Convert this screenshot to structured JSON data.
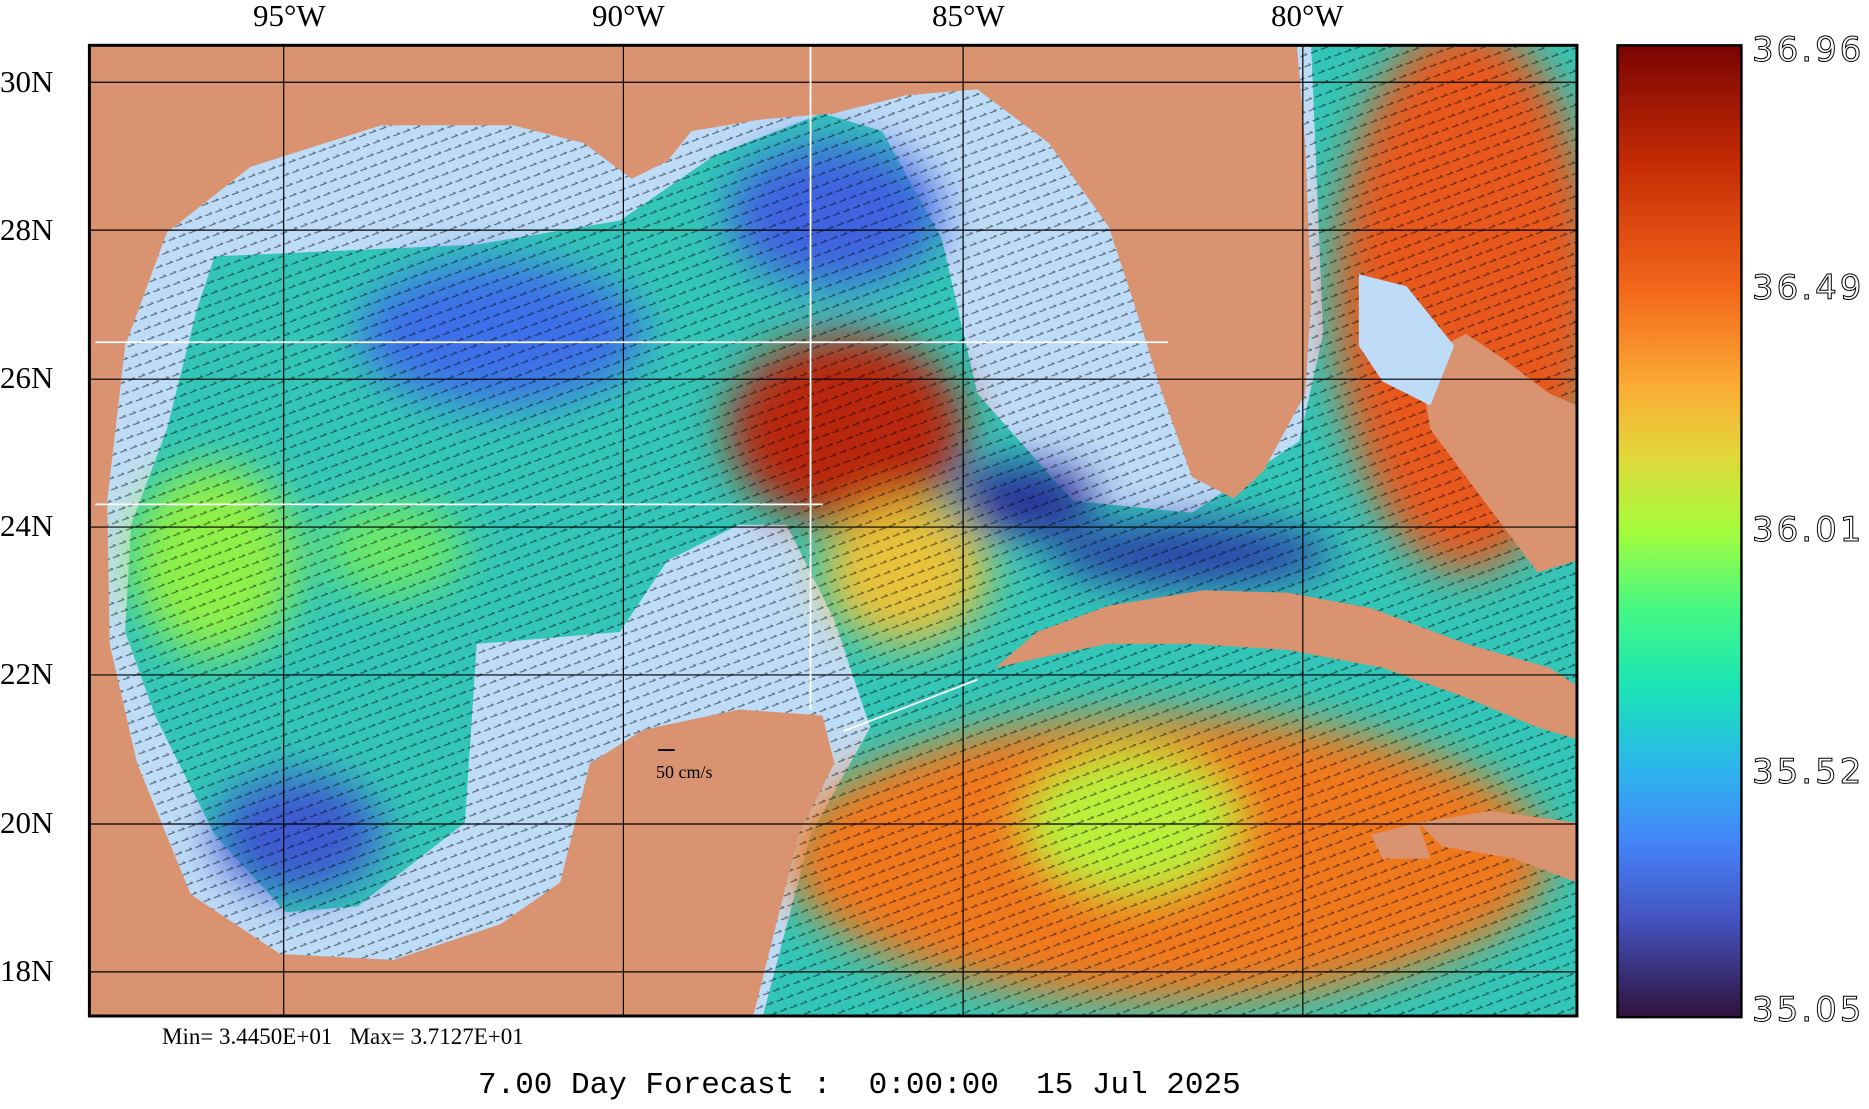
{
  "chart_data": {
    "type": "heatmap",
    "title": "7.00 Day Forecast :  0:00:00  15 Jul 2025",
    "variable": "sea surface salinity with surface current vectors",
    "x_ticks": [
      "95°W",
      "90°W",
      "85°W",
      "80°W"
    ],
    "x_tick_values": [
      -95,
      -90,
      -85,
      -80
    ],
    "y_ticks": [
      "30N",
      "28N",
      "26N",
      "24N",
      "22N",
      "20N",
      "18N"
    ],
    "y_tick_values": [
      30,
      28,
      26,
      24,
      22,
      20,
      18
    ],
    "xlim": [
      -98.0,
      -76.1
    ],
    "ylim": [
      17.4,
      30.5
    ],
    "grid": true,
    "colorbar": {
      "ticks": [
        "36.96",
        "36.49",
        "36.01",
        "35.52",
        "35.05"
      ],
      "range": [
        35.05,
        36.96
      ],
      "placement": "right"
    },
    "stats": "Min= 3.4450E+01   Max= 3.7127E+01",
    "vector_scale_label": "50 cm/s",
    "colors": {
      "land": "#d99370",
      "ocean_mask": "#bedcf7",
      "low": "#30123b",
      "high": "#7a0403"
    }
  }
}
